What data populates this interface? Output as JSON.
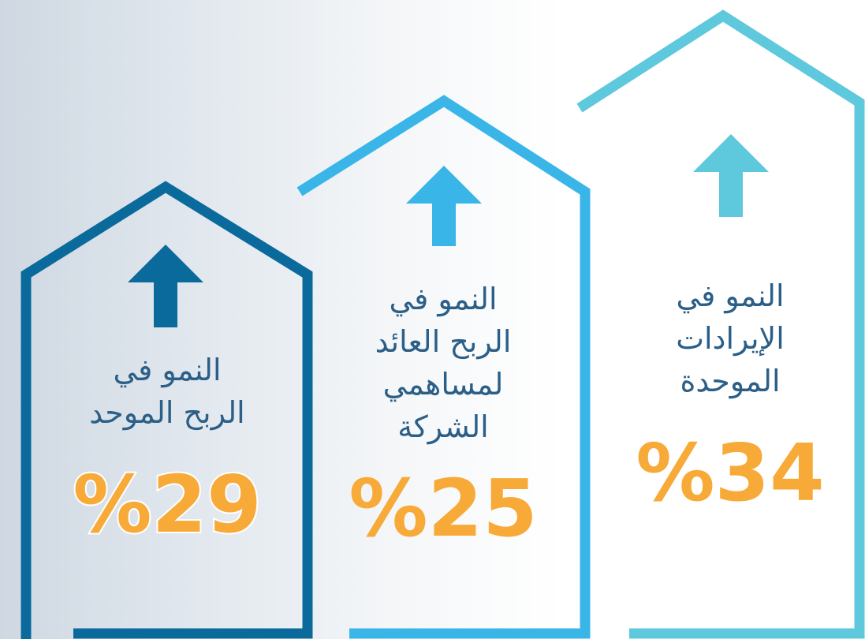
{
  "panels": [
    {
      "label_lines": [
        "النمو في",
        "الإيرادات",
        "الموحدة"
      ],
      "value": "%34"
    },
    {
      "label_lines": [
        "النمو في",
        "الربح العائد",
        "لمساهمي",
        "الشركة"
      ],
      "value": "%25"
    },
    {
      "label_lines": [
        "النمو في",
        "الربح الموحد"
      ],
      "value": "%29"
    }
  ]
}
